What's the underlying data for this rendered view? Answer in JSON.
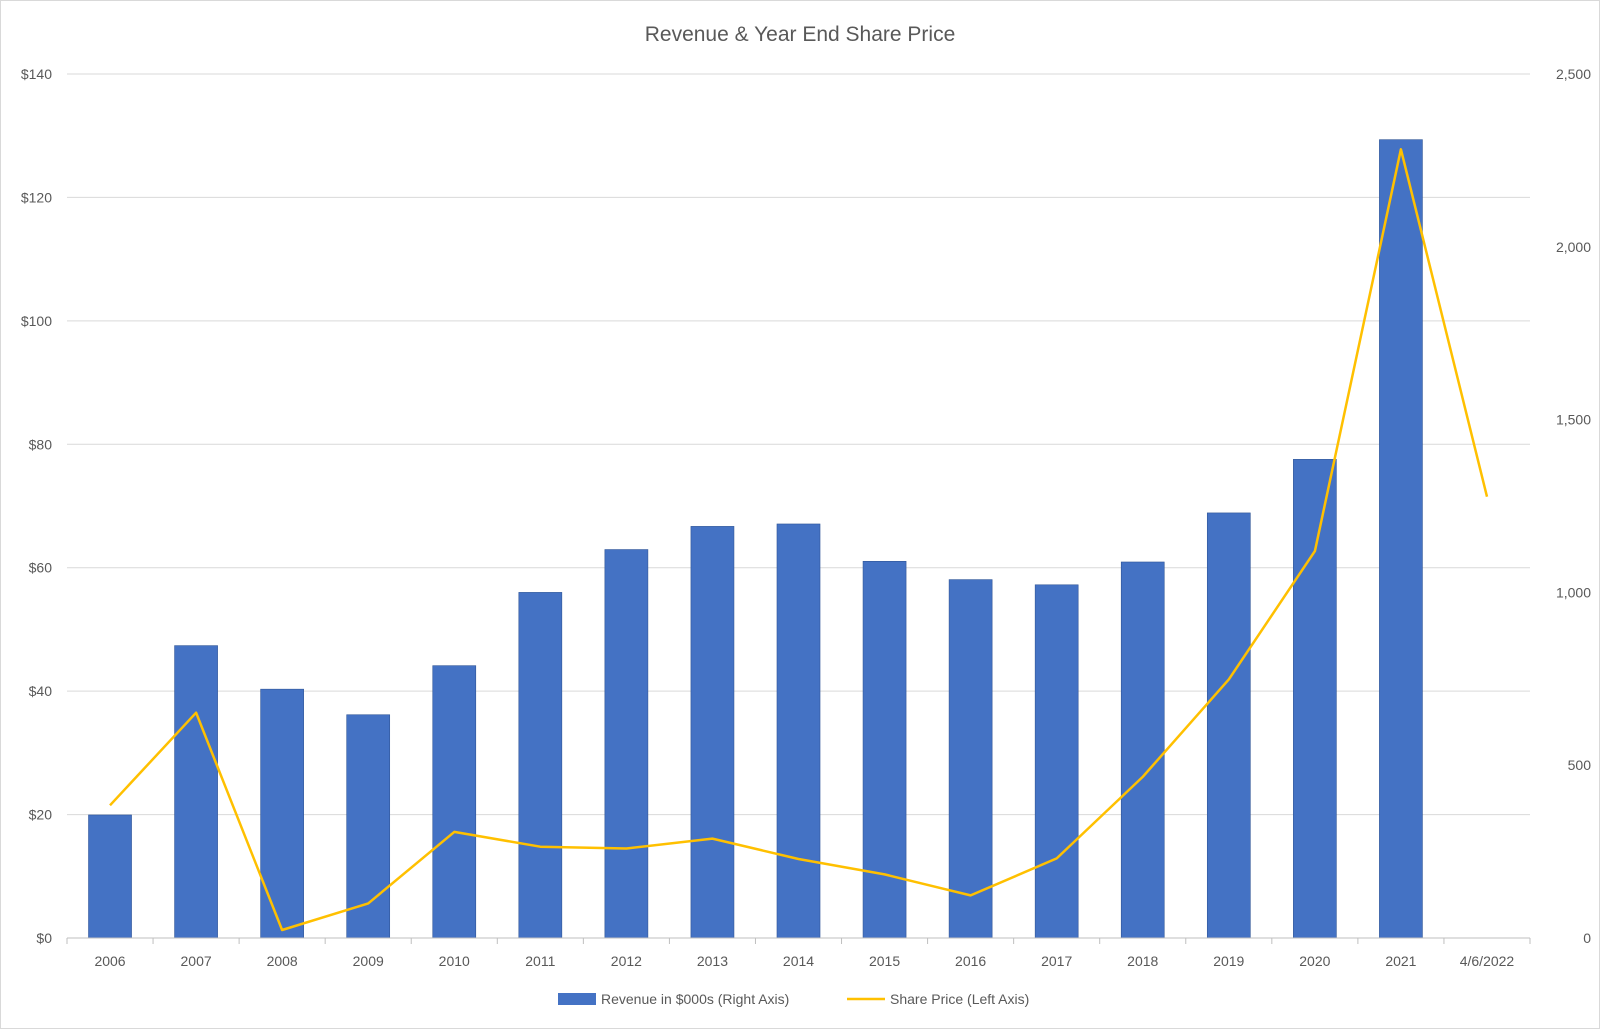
{
  "chart_data": {
    "type": "bar",
    "title": "Revenue & Year End Share Price",
    "categories": [
      "2006",
      "2007",
      "2008",
      "2009",
      "2010",
      "2011",
      "2012",
      "2013",
      "2014",
      "2015",
      "2016",
      "2017",
      "2018",
      "2019",
      "2020",
      "2021",
      "4/6/2022"
    ],
    "series": [
      {
        "name": "Revenue in $000s (Right Axis)",
        "type": "bar",
        "axis": "right",
        "color": "#4472C4",
        "values": [
          356,
          846,
          720,
          646,
          788,
          1000,
          1124,
          1191,
          1198,
          1090,
          1037,
          1022,
          1088,
          1230,
          1385,
          2310,
          null
        ]
      },
      {
        "name": "Share Price (Left Axis)",
        "type": "line",
        "axis": "left",
        "color": "#FFC000",
        "values": [
          21.5,
          36.5,
          1.3,
          5.6,
          17.2,
          14.8,
          14.5,
          16.1,
          12.8,
          10.3,
          6.9,
          12.9,
          26.1,
          41.9,
          62.7,
          127.8,
          71.5
        ]
      }
    ],
    "left_axis": {
      "min": 0,
      "max": 140,
      "step": 20,
      "tick_labels": [
        "$0",
        "$20",
        "$40",
        "$60",
        "$80",
        "$100",
        "$120",
        "$140"
      ]
    },
    "right_axis": {
      "min": 0,
      "max": 2500,
      "step": 500,
      "tick_labels": [
        "0",
        "500",
        "1,000",
        "1,500",
        "2,000",
        "2,500"
      ]
    },
    "grid": true,
    "legend_position": "bottom"
  }
}
